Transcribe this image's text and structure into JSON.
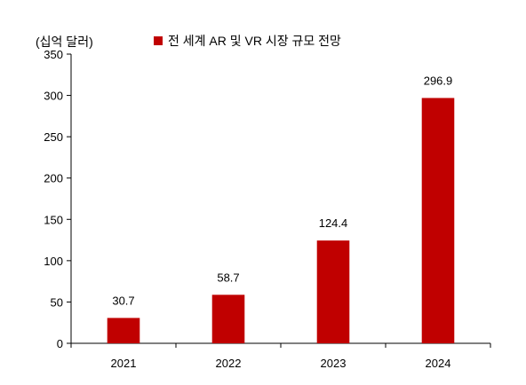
{
  "chart_data": {
    "type": "bar",
    "title": "",
    "unit_label": "(십억 달러)",
    "xlabel": "",
    "ylabel": "",
    "categories": [
      "2021",
      "2022",
      "2023",
      "2024"
    ],
    "series": [
      {
        "name": "전 세계 AR 및 VR 시장 규모 전망",
        "values": [
          30.7,
          58.7,
          124.4,
          296.9
        ],
        "labels": [
          "30.7",
          "58.7",
          "124.4",
          "296.9"
        ]
      }
    ],
    "ylim": [
      0,
      350
    ],
    "yticks": [
      0,
      50,
      100,
      150,
      200,
      250,
      300,
      350
    ],
    "grid": false,
    "legend_position": "top",
    "bar_color": "#c00000"
  }
}
